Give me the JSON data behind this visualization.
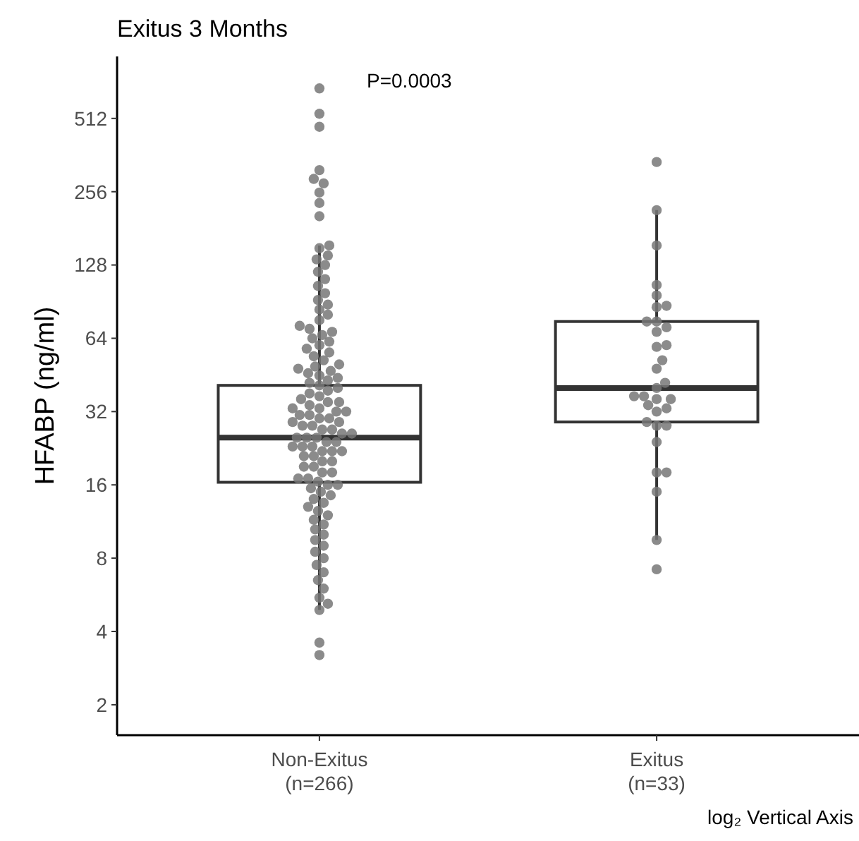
{
  "chart_data": {
    "type": "box",
    "title": "Exitus 3 Months",
    "ylabel": "HFABP (ng/ml)",
    "categories": [
      "Non-Exitus\n(n=266)",
      "Exitus\n(n=33)"
    ],
    "color": "#333333",
    "boxes": [
      {
        "low": 4.9,
        "q1": 16.4,
        "median": 25,
        "q3": 41,
        "high": 154
      },
      {
        "low": 9.5,
        "q1": 29,
        "median": 40,
        "q3": 75,
        "high": 215
      }
    ],
    "log": true,
    "ylim": [
      1.5,
      920
    ],
    "yticks": [
      2,
      4,
      8,
      16,
      32,
      64,
      128,
      256,
      512
    ],
    "series": [
      {
        "type": "scatter",
        "color": "#777777",
        "x": [
          "Non-Exitus\n(n=266)",
          "Non-Exitus\n(n=266)",
          "Non-Exitus\n(n=266)",
          "Non-Exitus\n(n=266)",
          "Non-Exitus\n(n=266)",
          "Non-Exitus\n(n=266)",
          "Non-Exitus\n(n=266)",
          "Non-Exitus\n(n=266)",
          "Non-Exitus\n(n=266)",
          "Non-Exitus\n(n=266)",
          "Non-Exitus\n(n=266)",
          "Non-Exitus\n(n=266)",
          "Non-Exitus\n(n=266)",
          "Non-Exitus\n(n=266)",
          "Non-Exitus\n(n=266)",
          "Non-Exitus\n(n=266)",
          "Non-Exitus\n(n=266)",
          "Non-Exitus\n(n=266)",
          "Non-Exitus\n(n=266)",
          "Non-Exitus\n(n=266)",
          "Non-Exitus\n(n=266)",
          "Non-Exitus\n(n=266)",
          "Non-Exitus\n(n=266)",
          "Non-Exitus\n(n=266)",
          "Non-Exitus\n(n=266)",
          "Non-Exitus\n(n=266)",
          "Non-Exitus\n(n=266)",
          "Non-Exitus\n(n=266)",
          "Non-Exitus\n(n=266)",
          "Non-Exitus\n(n=266)",
          "Non-Exitus\n(n=266)",
          "Non-Exitus\n(n=266)",
          "Non-Exitus\n(n=266)",
          "Non-Exitus\n(n=266)",
          "Non-Exitus\n(n=266)",
          "Non-Exitus\n(n=266)",
          "Non-Exitus\n(n=266)",
          "Non-Exitus\n(n=266)",
          "Non-Exitus\n(n=266)",
          "Non-Exitus\n(n=266)",
          "Non-Exitus\n(n=266)",
          "Non-Exitus\n(n=266)",
          "Non-Exitus\n(n=266)",
          "Non-Exitus\n(n=266)",
          "Non-Exitus\n(n=266)",
          "Non-Exitus\n(n=266)",
          "Non-Exitus\n(n=266)",
          "Non-Exitus\n(n=266)",
          "Non-Exitus\n(n=266)",
          "Non-Exitus\n(n=266)",
          "Non-Exitus\n(n=266)",
          "Non-Exitus\n(n=266)",
          "Non-Exitus\n(n=266)",
          "Non-Exitus\n(n=266)",
          "Non-Exitus\n(n=266)",
          "Non-Exitus\n(n=266)",
          "Non-Exitus\n(n=266)",
          "Non-Exitus\n(n=266)",
          "Non-Exitus\n(n=266)",
          "Non-Exitus\n(n=266)",
          "Non-Exitus\n(n=266)",
          "Non-Exitus\n(n=266)",
          "Non-Exitus\n(n=266)",
          "Non-Exitus\n(n=266)",
          "Non-Exitus\n(n=266)",
          "Non-Exitus\n(n=266)",
          "Non-Exitus\n(n=266)",
          "Non-Exitus\n(n=266)",
          "Non-Exitus\n(n=266)",
          "Non-Exitus\n(n=266)",
          "Non-Exitus\n(n=266)",
          "Non-Exitus\n(n=266)",
          "Non-Exitus\n(n=266)",
          "Non-Exitus\n(n=266)",
          "Non-Exitus\n(n=266)",
          "Non-Exitus\n(n=266)",
          "Non-Exitus\n(n=266)",
          "Non-Exitus\n(n=266)",
          "Non-Exitus\n(n=266)",
          "Non-Exitus\n(n=266)",
          "Non-Exitus\n(n=266)",
          "Non-Exitus\n(n=266)",
          "Non-Exitus\n(n=266)",
          "Non-Exitus\n(n=266)",
          "Non-Exitus\n(n=266)",
          "Non-Exitus\n(n=266)",
          "Non-Exitus\n(n=266)",
          "Non-Exitus\n(n=266)",
          "Non-Exitus\n(n=266)",
          "Non-Exitus\n(n=266)",
          "Non-Exitus\n(n=266)",
          "Non-Exitus\n(n=266)",
          "Non-Exitus\n(n=266)",
          "Non-Exitus\n(n=266)",
          "Non-Exitus\n(n=266)",
          "Non-Exitus\n(n=266)",
          "Non-Exitus\n(n=266)",
          "Non-Exitus\n(n=266)",
          "Non-Exitus\n(n=266)",
          "Non-Exitus\n(n=266)",
          "Non-Exitus\n(n=266)",
          "Non-Exitus\n(n=266)",
          "Non-Exitus\n(n=266)",
          "Non-Exitus\n(n=266)",
          "Non-Exitus\n(n=266)",
          "Non-Exitus\n(n=266)",
          "Non-Exitus\n(n=266)",
          "Non-Exitus\n(n=266)",
          "Non-Exitus\n(n=266)",
          "Non-Exitus\n(n=266)",
          "Non-Exitus\n(n=266)",
          "Non-Exitus\n(n=266)",
          "Non-Exitus\n(n=266)",
          "Non-Exitus\n(n=266)",
          "Non-Exitus\n(n=266)",
          "Non-Exitus\n(n=266)",
          "Non-Exitus\n(n=266)",
          "Exitus\n(n=33)",
          "Exitus\n(n=33)",
          "Exitus\n(n=33)",
          "Exitus\n(n=33)",
          "Exitus\n(n=33)",
          "Exitus\n(n=33)",
          "Exitus\n(n=33)",
          "Exitus\n(n=33)",
          "Exitus\n(n=33)",
          "Exitus\n(n=33)",
          "Exitus\n(n=33)",
          "Exitus\n(n=33)",
          "Exitus\n(n=33)",
          "Exitus\n(n=33)",
          "Exitus\n(n=33)",
          "Exitus\n(n=33)",
          "Exitus\n(n=33)",
          "Exitus\n(n=33)",
          "Exitus\n(n=33)",
          "Exitus\n(n=33)",
          "Exitus\n(n=33)",
          "Exitus\n(n=33)",
          "Exitus\n(n=33)",
          "Exitus\n(n=33)",
          "Exitus\n(n=33)",
          "Exitus\n(n=33)",
          "Exitus\n(n=33)",
          "Exitus\n(n=33)",
          "Exitus\n(n=33)",
          "Exitus\n(n=33)",
          "Exitus\n(n=33)",
          "Exitus\n(n=33)",
          "Exitus\n(n=33)"
        ],
        "values": [
          680,
          535,
          473,
          314,
          289,
          277,
          254,
          230,
          203,
          154,
          150,
          140,
          135,
          128,
          120,
          112,
          105,
          98,
          92,
          88,
          84,
          80,
          76,
          72,
          70,
          68,
          66,
          64,
          62,
          60,
          58,
          56,
          54,
          52,
          50,
          49,
          48,
          47,
          46,
          45,
          44,
          43,
          42,
          41,
          40,
          39,
          38,
          37,
          36,
          35,
          35,
          34,
          33,
          33,
          32,
          32,
          31,
          31,
          30,
          30,
          29,
          29,
          28,
          28,
          27,
          27,
          26,
          26,
          25,
          25,
          25,
          24,
          24,
          23,
          23,
          23,
          22,
          22,
          22,
          21,
          21,
          20,
          20,
          19,
          19,
          18,
          18,
          17,
          17,
          16.5,
          16,
          16,
          15.5,
          15,
          14.5,
          14,
          13.5,
          13,
          12.5,
          12,
          11.5,
          11,
          10.5,
          10,
          9.5,
          9,
          8.5,
          8,
          7.5,
          7,
          6.5,
          6,
          5.5,
          5.2,
          4.9,
          3.6,
          3.2,
          339,
          215,
          154,
          106,
          96,
          86,
          87,
          75,
          75,
          71,
          68,
          59,
          60,
          52,
          48,
          42,
          40,
          37,
          37,
          36,
          34,
          33,
          32,
          36,
          29,
          28,
          28,
          24,
          18,
          18,
          15,
          9.5,
          7.2
        ]
      }
    ],
    "annotations": [
      "P=0.0003",
      "log₂ Vertical Axis"
    ]
  }
}
